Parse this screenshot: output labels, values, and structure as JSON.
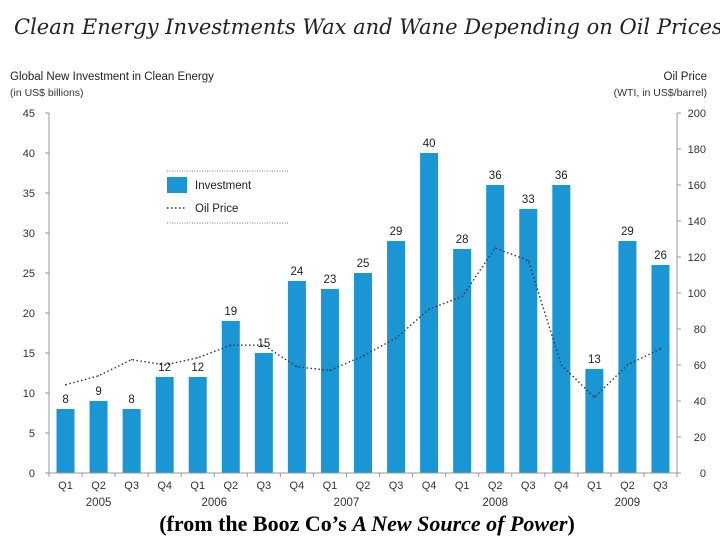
{
  "colors": {
    "bar": "#1a96d4",
    "line": "#333333",
    "axis": "#999999"
  },
  "chart_data": {
    "type": "bar",
    "title": "Clean Energy Investments Wax and Wane Depending on Oil Prices",
    "left_axis": {
      "title": "Global New Investment in Clean Energy",
      "subtitle": "(in US$ billions)",
      "range": [
        0,
        45
      ],
      "ticks": [
        0,
        5,
        10,
        15,
        20,
        25,
        30,
        35,
        40,
        45
      ]
    },
    "right_axis": {
      "title": "Oil Price",
      "subtitle": "(WTI, in US$/barrel)",
      "range": [
        0,
        200
      ],
      "ticks": [
        0,
        20,
        40,
        60,
        80,
        100,
        120,
        140,
        160,
        180,
        200
      ]
    },
    "categories": [
      "Q1",
      "Q2",
      "Q3",
      "Q4",
      "Q1",
      "Q2",
      "Q3",
      "Q4",
      "Q1",
      "Q2",
      "Q3",
      "Q4",
      "Q1",
      "Q2",
      "Q3",
      "Q4",
      "Q1",
      "Q2",
      "Q3"
    ],
    "years": [
      {
        "label": "2005",
        "start": 0,
        "end": 2
      },
      {
        "label": "2006",
        "start": 3,
        "end": 6
      },
      {
        "label": "2007",
        "start": 7,
        "end": 10
      },
      {
        "label": "2008",
        "start": 11,
        "end": 15
      },
      {
        "label": "2009",
        "start": 16,
        "end": 18
      }
    ],
    "series": [
      {
        "name": "Investment",
        "type": "bar",
        "axis": "left",
        "values": [
          8,
          9,
          8,
          12,
          12,
          19,
          15,
          24,
          23,
          25,
          29,
          40,
          28,
          36,
          33,
          36,
          13,
          29,
          26
        ]
      },
      {
        "name": "Oil Price",
        "type": "line",
        "style": "dotted",
        "axis": "right",
        "values": [
          49,
          54,
          63,
          60,
          64,
          71,
          71,
          59,
          57,
          65,
          75,
          91,
          98,
          125,
          118,
          60,
          42,
          60,
          69
        ]
      }
    ],
    "data_labels": [
      "8",
      "9",
      "8",
      "12",
      "12",
      "19",
      "15",
      "24",
      "23",
      "25",
      "29",
      "40",
      "28",
      "36",
      "33",
      "36",
      "13",
      "29",
      "26"
    ],
    "legend": {
      "position": "top-left",
      "items": [
        "Investment",
        "Oil Price"
      ]
    }
  },
  "caption": {
    "prefix": "(from the Booz Co’s ",
    "italic": "A New Source of Power",
    "suffix": ")"
  }
}
